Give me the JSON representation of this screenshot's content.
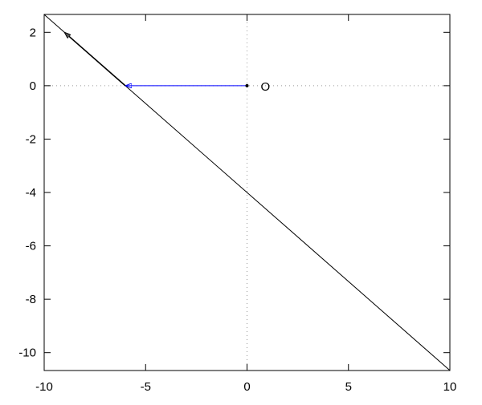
{
  "chart_data": {
    "type": "line",
    "title": "",
    "xlabel": "",
    "ylabel": "",
    "xlim": [
      -10,
      10
    ],
    "ylim": [
      -10.67,
      2.67
    ],
    "xticks": [
      -10,
      -5,
      0,
      5,
      10
    ],
    "yticks": [
      2,
      0,
      -2,
      -4,
      -6,
      -8,
      -10
    ],
    "grid": false,
    "zero_axes": true,
    "line": {
      "slope": -0.6667,
      "intercept": -4,
      "color": "#000000"
    },
    "arrows": [
      {
        "from": [
          0,
          0
        ],
        "to": [
          -6,
          0
        ],
        "color": "#0000ff"
      },
      {
        "from": [
          -6,
          0
        ],
        "to": [
          -9,
          2
        ],
        "color": "#000000"
      }
    ],
    "points": [
      {
        "x": 0,
        "y": 0,
        "label": "O"
      }
    ]
  }
}
